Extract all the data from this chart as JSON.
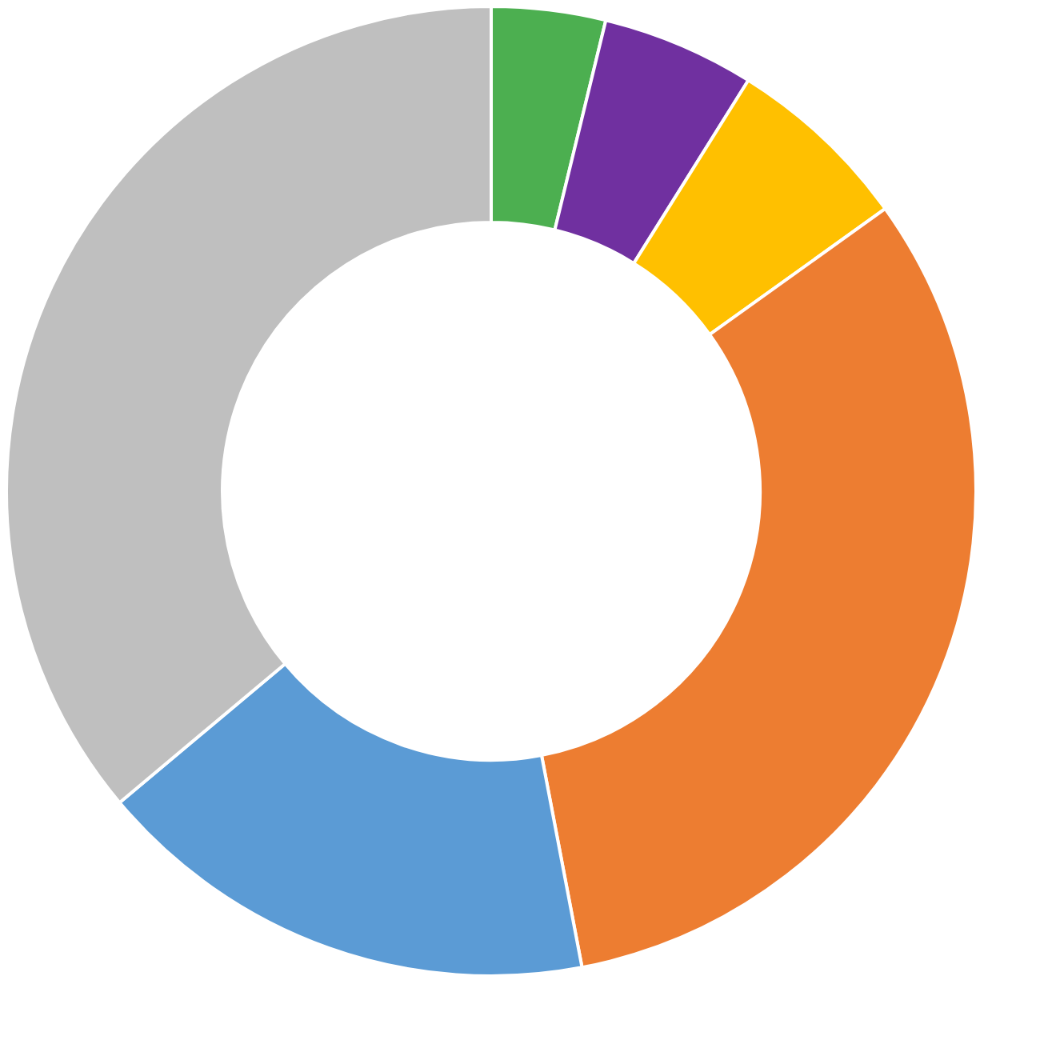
{
  "chart_data": {
    "type": "donut",
    "categories": [
      null,
      null,
      null,
      null,
      null,
      null
    ],
    "values": [
      3.8,
      5.1,
      6.2,
      31.9,
      16.9,
      36.1
    ],
    "colors": [
      "#4caf50",
      "#7030a0",
      "#ffc000",
      "#ed7d31",
      "#5b9bd5",
      "#bfbfbf"
    ]
  }
}
